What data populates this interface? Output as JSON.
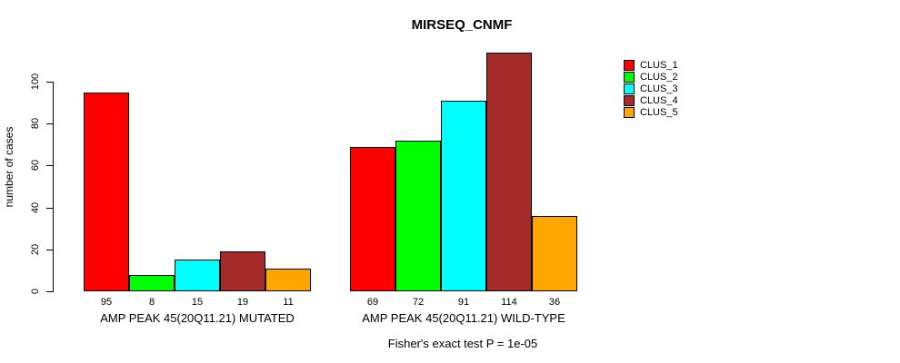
{
  "chart_data": {
    "type": "bar",
    "title": "MIRSEQ_CNMF",
    "ylabel": "number of cases",
    "xlabel": "",
    "ylim": [
      0,
      116
    ],
    "yticks": [
      0,
      20,
      40,
      60,
      80,
      100
    ],
    "grid": false,
    "legend_position": "right-outside",
    "bar_value_labels": true,
    "categories": [
      "AMP PEAK 45(20Q11.21) MUTATED",
      "AMP PEAK 45(20Q11.21) WILD-TYPE"
    ],
    "series_names": [
      "CLUS_1",
      "CLUS_2",
      "CLUS_3",
      "CLUS_4",
      "CLUS_5"
    ],
    "series_colors": [
      "#FF0000",
      "#00FF00",
      "#00FFFF",
      "#A52A2A",
      "#FFA500"
    ],
    "series": [
      {
        "name": "CLUS_1",
        "values": [
          95,
          69
        ]
      },
      {
        "name": "CLUS_2",
        "values": [
          8,
          72
        ]
      },
      {
        "name": "CLUS_3",
        "values": [
          15,
          91
        ]
      },
      {
        "name": "CLUS_4",
        "values": [
          19,
          114
        ]
      },
      {
        "name": "CLUS_5",
        "values": [
          11,
          36
        ]
      }
    ],
    "annotation": "Fisher's exact test P = 1e-05",
    "colors": {
      "background": "#FFFFFF",
      "axis": "#000000",
      "text": "#000000"
    }
  }
}
